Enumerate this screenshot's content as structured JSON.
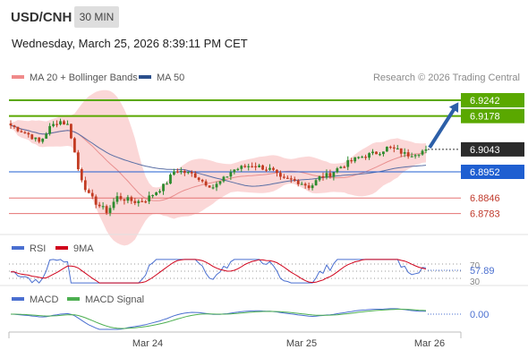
{
  "header": {
    "symbol": "USD/CNH",
    "timeframe": "30 MIN",
    "datetime": "Wednesday, March 25, 2026 8:39:11 PM CET"
  },
  "legend": {
    "bollinger": "MA 20 + Bollinger Bands",
    "ma50": "MA 50",
    "credit": "Research © 2026 Trading Central"
  },
  "colors": {
    "up_candle": "#2e8b2e",
    "down_candle": "#c23b22",
    "band_fill": "#f7b6b6",
    "ma20": "#e98f8f",
    "ma50": "#5a6fa5",
    "resistance": "#5aa800",
    "pivot": "#1f5fd1",
    "support": "#e57373",
    "current_price_bg": "#2b2b2b",
    "rsi": "#4a6fd0",
    "rsi_ma": "#d0021b",
    "macd": "#4a6fd0",
    "macd_signal": "#4caf50",
    "arrow": "#2c5fa8"
  },
  "chart_data": {
    "type": "candlestick",
    "symbol": "USD/CNH",
    "timeframe": "30 MIN",
    "x_ticks": [
      "Mar 24",
      "Mar 25",
      "Mar 26"
    ],
    "current_price": 6.9043,
    "levels": [
      {
        "label": "6.9242",
        "value": 6.9242,
        "role": "resistance",
        "style": "arrow-target"
      },
      {
        "label": "6.9178",
        "value": 6.9178,
        "role": "resistance"
      },
      {
        "label": "6.8952",
        "value": 6.8952,
        "role": "pivot"
      },
      {
        "label": "6.8846",
        "value": 6.8846,
        "role": "support"
      },
      {
        "label": "6.8783",
        "value": 6.8783,
        "role": "support"
      }
    ],
    "price_range": [
      6.872,
      6.93
    ],
    "series": [
      {
        "name": "MA 20 + Bollinger Bands",
        "indicator": "bollinger"
      },
      {
        "name": "MA 50",
        "indicator": "ma50"
      }
    ],
    "price_waypoints": [
      6.914,
      6.912,
      6.91,
      6.907,
      6.913,
      6.916,
      6.914,
      6.896,
      6.886,
      6.882,
      6.879,
      6.885,
      6.884,
      6.883,
      6.884,
      6.887,
      6.89,
      6.896,
      6.895,
      6.894,
      6.891,
      6.889,
      6.892,
      6.896,
      6.897,
      6.898,
      6.897,
      6.896,
      6.892,
      6.892,
      6.891,
      6.889,
      6.893,
      6.894,
      6.897,
      6.899,
      6.901,
      6.902,
      6.903,
      6.905,
      6.904,
      6.902,
      6.903,
      6.904
    ],
    "rsi": {
      "label": "RSI",
      "ma_label": "9MA",
      "value_label": "57.89",
      "value": 57.89,
      "levels": [
        "70",
        "30"
      ],
      "range": [
        20,
        80
      ]
    },
    "macd": {
      "label": "MACD",
      "signal_label": "MACD Signal",
      "value_label": "0.00",
      "value": 0.0
    }
  }
}
